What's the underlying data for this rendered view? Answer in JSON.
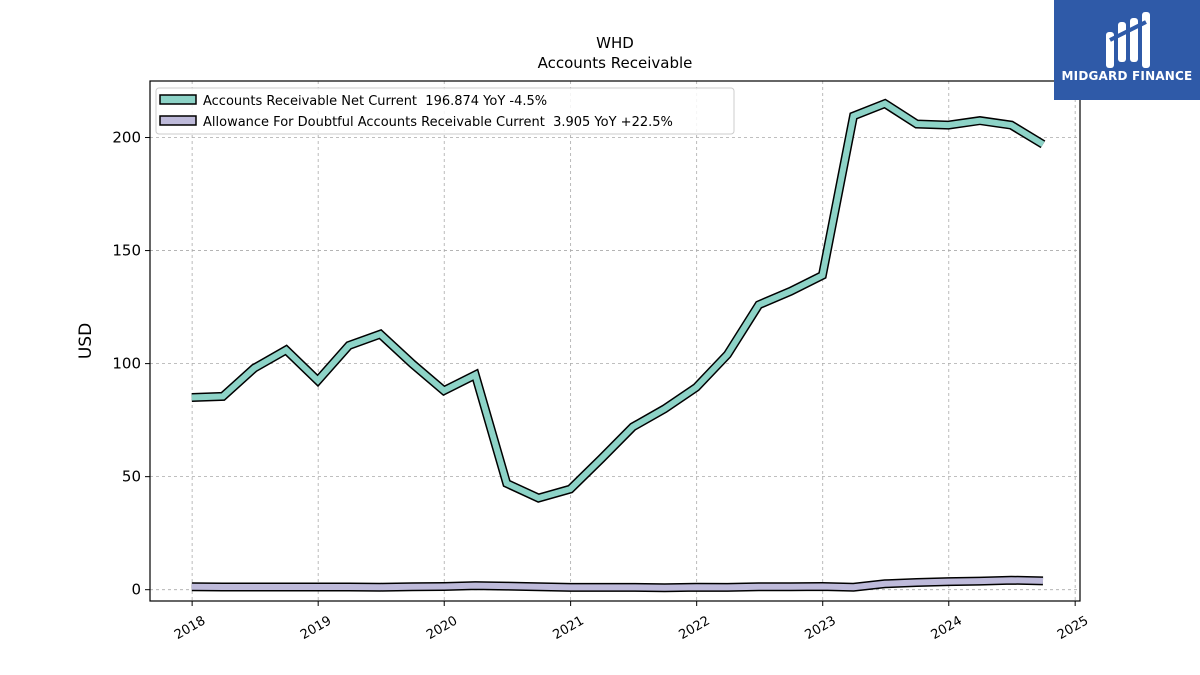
{
  "brand": {
    "name": "MIDGARD FINANCE",
    "logo_color": "#2f5aa8"
  },
  "chart_data": {
    "type": "line",
    "title": "WHD",
    "subtitle": "Accounts Receivable",
    "xlabel": "",
    "ylabel": "USD",
    "xlim": [
      "2017-09-01",
      "2025-01-15"
    ],
    "ylim": [
      -5,
      225
    ],
    "y_ticks": [
      0,
      50,
      100,
      150,
      200
    ],
    "x_ticks": [
      "2018",
      "2019",
      "2020",
      "2021",
      "2022",
      "2023",
      "2024",
      "2025"
    ],
    "grid": true,
    "legend_position": "top-left",
    "series": [
      {
        "name": "Accounts Receivable Net Current  196.874 YoY -4.5%",
        "color": "#8dd3c7",
        "x": [
          "2017-12-31",
          "2018-03-31",
          "2018-06-30",
          "2018-09-30",
          "2018-12-31",
          "2019-03-31",
          "2019-06-30",
          "2019-09-30",
          "2019-12-31",
          "2020-03-31",
          "2020-06-30",
          "2020-09-30",
          "2020-12-31",
          "2021-03-31",
          "2021-06-30",
          "2021-09-30",
          "2021-12-31",
          "2022-03-31",
          "2022-06-30",
          "2022-09-30",
          "2022-12-31",
          "2023-03-31",
          "2023-06-30",
          "2023-09-30",
          "2023-12-31",
          "2024-03-31",
          "2024-06-30",
          "2024-09-30"
        ],
        "values": [
          85,
          85.5,
          98,
          106,
          92.5,
          108,
          113,
          100,
          88,
          95,
          47,
          40.5,
          44.5,
          58,
          72,
          80,
          89.5,
          104,
          126,
          132,
          139,
          209.5,
          215,
          206,
          205.5,
          207.5,
          205.5,
          197
        ]
      },
      {
        "name": "Allowance For Doubtful Accounts Receivable Current  3.905 YoY +22.5%",
        "color": "#bebada",
        "x": [
          "2017-12-31",
          "2018-03-31",
          "2018-06-30",
          "2018-09-30",
          "2018-12-31",
          "2019-03-31",
          "2019-06-30",
          "2019-09-30",
          "2019-12-31",
          "2020-03-31",
          "2020-06-30",
          "2020-09-30",
          "2020-12-31",
          "2021-03-31",
          "2021-06-30",
          "2021-09-30",
          "2021-12-31",
          "2022-03-31",
          "2022-06-30",
          "2022-09-30",
          "2022-12-31",
          "2023-03-31",
          "2023-06-30",
          "2023-09-30",
          "2023-12-31",
          "2024-03-31",
          "2024-06-30",
          "2024-09-30"
        ],
        "values": [
          1.3,
          1.2,
          1.2,
          1.2,
          1.2,
          1.2,
          1.1,
          1.3,
          1.4,
          1.8,
          1.6,
          1.3,
          1.0,
          1.0,
          1.0,
          0.9,
          1.1,
          1.0,
          1.3,
          1.3,
          1.4,
          1.1,
          2.6,
          3.2,
          3.6,
          3.8,
          4.2,
          3.9
        ]
      }
    ]
  }
}
